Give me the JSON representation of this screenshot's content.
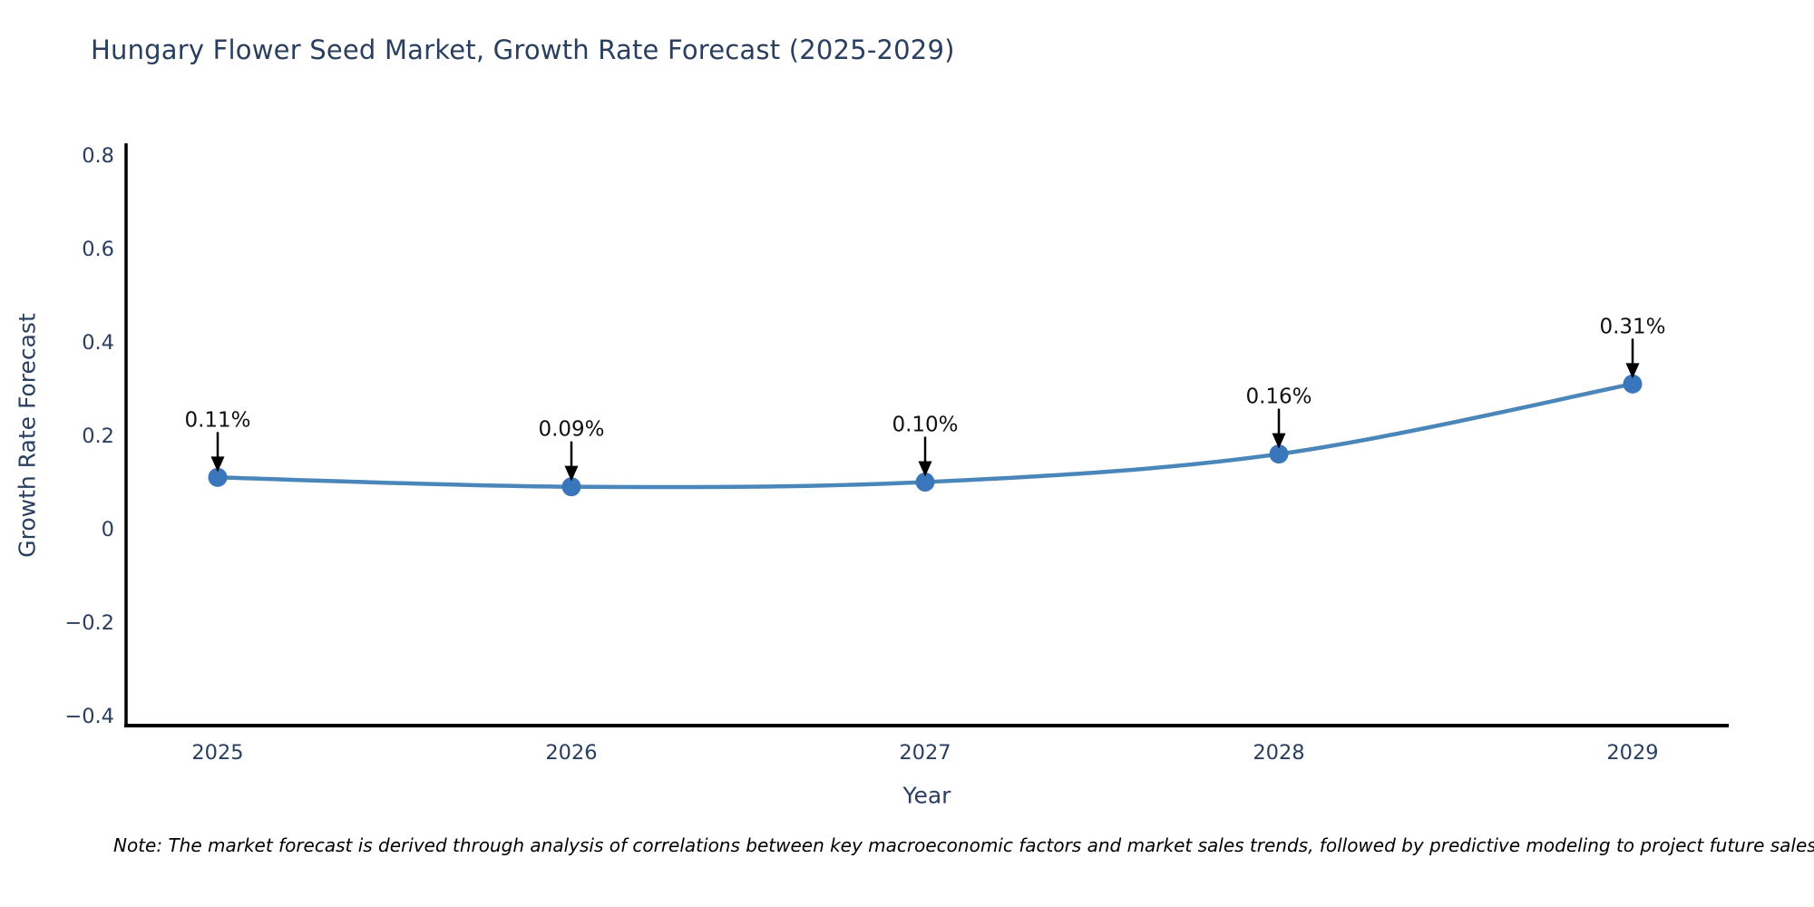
{
  "title": "Hungary Flower Seed Market, Growth Rate Forecast (2025-2029)",
  "note": "Note: The market forecast is derived through analysis of correlations between key macroeconomic factors and market sales trends, followed by predictive modeling to project future sales.",
  "chart_data": {
    "type": "line",
    "title": "Hungary Flower Seed Market, Growth Rate Forecast (2025-2029)",
    "xlabel": "Year",
    "ylabel": "Growth Rate Forecast",
    "categories": [
      "2025",
      "2026",
      "2027",
      "2028",
      "2029"
    ],
    "series": [
      {
        "name": "Growth Rate Forecast",
        "values": [
          0.11,
          0.09,
          0.1,
          0.16,
          0.31
        ],
        "data_labels": [
          "0.11%",
          "0.09%",
          "0.10%",
          "0.16%",
          "0.31%"
        ]
      }
    ],
    "ylim": [
      -0.4,
      0.8
    ],
    "yticks": {
      "values": [
        0.8,
        0.6,
        0.4,
        0.2,
        0,
        -0.2,
        -0.4
      ],
      "labels": [
        "0.8",
        "0.6",
        "0.4",
        "0.2",
        "0",
        "−0.2",
        "−0.4"
      ]
    },
    "grid": false,
    "legend": false,
    "annotations_style": "value-label-with-down-arrow",
    "colors": {
      "line": "#4a86ba",
      "marker": "#3a76bb",
      "annotation_text": "#111111",
      "arrow": "#000000",
      "axis": "#000000",
      "axis_text": "#2a3f5f"
    }
  }
}
